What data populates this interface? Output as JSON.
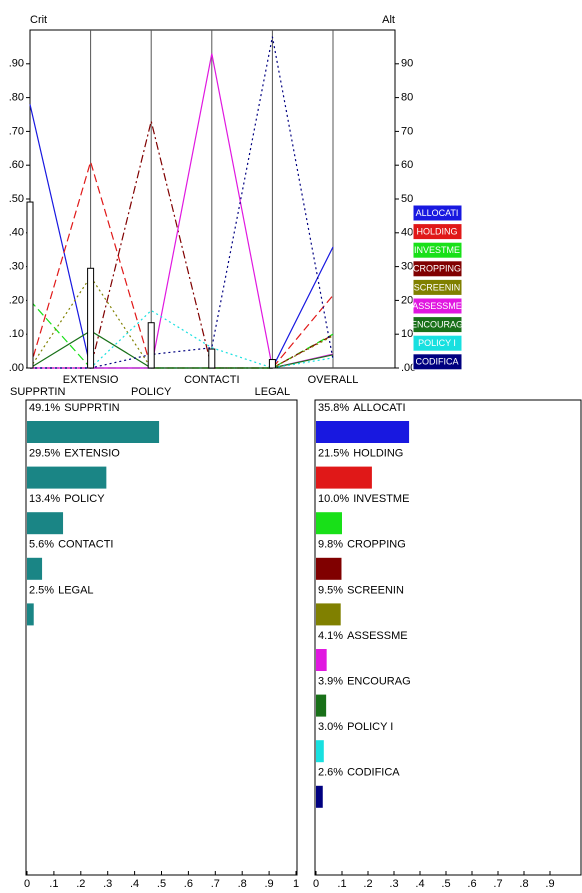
{
  "chart_data": [
    {
      "type": "line",
      "left_axis_label": "Crit",
      "right_axis_label": "Alt",
      "categories": [
        "SUPPRTIN",
        "EXTENSIO",
        "POLICY",
        "CONTACTI",
        "LEGAL",
        "OVERALL"
      ],
      "criterion_weights": [
        0.491,
        0.295,
        0.134,
        0.056,
        0.025
      ],
      "series": [
        {
          "name": "ALLOCATI",
          "color": "#1818e0",
          "style": "solid",
          "values": [
            0.78,
            0,
            0,
            0,
            0,
            0.358
          ]
        },
        {
          "name": "HOLDING",
          "color": "#e01818",
          "style": "dashed",
          "values": [
            0,
            0.61,
            0,
            0,
            0,
            0.215
          ]
        },
        {
          "name": "INVESTME",
          "color": "#18e018",
          "style": "dashed",
          "values": [
            0.2,
            0,
            0,
            0,
            0,
            0.1
          ]
        },
        {
          "name": "CROPPING",
          "color": "#800000",
          "style": "dashdot",
          "values": [
            0,
            0,
            0.73,
            0,
            0,
            0.098
          ]
        },
        {
          "name": "SCREENIN",
          "color": "#808000",
          "style": "dotted",
          "values": [
            0,
            0.27,
            0,
            0,
            0,
            0.095
          ]
        },
        {
          "name": "ASSESSME",
          "color": "#e018e0",
          "style": "solid",
          "values": [
            0,
            0,
            0,
            0.93,
            0,
            0.041
          ]
        },
        {
          "name": "ENCOURAG",
          "color": "#187018",
          "style": "solid",
          "values": [
            0,
            0.11,
            0,
            0,
            0,
            0.039
          ]
        },
        {
          "name": "POLICY I",
          "color": "#18e0e0",
          "style": "dotted",
          "values": [
            0,
            0,
            0.17,
            0.06,
            0,
            0.03
          ]
        },
        {
          "name": "CODIFICA",
          "color": "#000080",
          "style": "dotted",
          "values": [
            0,
            0,
            0.04,
            0.06,
            0.98,
            0.026
          ]
        }
      ],
      "ylim": [
        0,
        1
      ],
      "yticks": [
        {
          "value": 0,
          "label": ".00"
        },
        {
          "value": 0.1,
          "label": ".10"
        },
        {
          "value": 0.2,
          "label": ".20"
        },
        {
          "value": 0.3,
          "label": ".30"
        },
        {
          "value": 0.4,
          "label": ".40"
        },
        {
          "value": 0.5,
          "label": ".50"
        },
        {
          "value": 0.6,
          "label": ".60"
        },
        {
          "value": 0.7,
          "label": ".70"
        },
        {
          "value": 0.8,
          "label": ".80"
        },
        {
          "value": 0.9,
          "label": ".90"
        }
      ],
      "y2lim": [
        0,
        1
      ],
      "y2ticks": [
        {
          "value": 0,
          "label": ".00"
        },
        {
          "value": 0.1,
          "label": "10"
        },
        {
          "value": 0.2,
          "label": "20"
        },
        {
          "value": 0.3,
          "label": "30"
        },
        {
          "value": 0.4,
          "label": "40"
        },
        {
          "value": 0.5,
          "label": "50"
        },
        {
          "value": 0.6,
          "label": "60"
        },
        {
          "value": 0.7,
          "label": "70"
        },
        {
          "value": 0.8,
          "label": "80"
        },
        {
          "value": 0.9,
          "label": "90"
        }
      ]
    },
    {
      "type": "hbar",
      "categories": [
        "SUPPRTIN",
        "EXTENSIO",
        "POLICY",
        "CONTACTI",
        "LEGAL"
      ],
      "values": [
        0.491,
        0.295,
        0.134,
        0.056,
        0.025
      ],
      "value_labels": [
        "49.1%",
        "29.5%",
        "13.4%",
        "5.6%",
        "2.5%"
      ],
      "color": "#1a8585",
      "xlim": [
        0,
        1
      ],
      "xticks": [
        0,
        {
          "value": 0.1,
          "label": ".1"
        },
        {
          "value": 0.2,
          "label": ".2"
        },
        {
          "value": 0.3,
          "label": ".3"
        },
        {
          "value": 0.4,
          "label": ".4"
        },
        {
          "value": 0.5,
          "label": ".5"
        },
        {
          "value": 0.6,
          "label": ".6"
        },
        {
          "value": 0.7,
          "label": ".7"
        },
        {
          "value": 0.8,
          "label": ".8"
        },
        {
          "value": 0.9,
          "label": ".9"
        },
        1
      ]
    },
    {
      "type": "hbar",
      "categories": [
        "ALLOCATI",
        "HOLDING",
        "INVESTME",
        "CROPPING",
        "SCREENIN",
        "ASSESSME",
        "ENCOURAG",
        "POLICY I",
        "CODIFICA"
      ],
      "values": [
        0.358,
        0.215,
        0.1,
        0.098,
        0.095,
        0.041,
        0.039,
        0.03,
        0.026
      ],
      "value_labels": [
        "35.8%",
        "21.5%",
        "10.0%",
        "9.8%",
        "9.5%",
        "4.1%",
        "3.9%",
        "3.0%",
        "2.6%"
      ],
      "colors": [
        "#1818e0",
        "#e01818",
        "#18e018",
        "#800000",
        "#808000",
        "#e018e0",
        "#187018",
        "#18e0e0",
        "#000080"
      ],
      "xlim": [
        0,
        1
      ],
      "xticks": [
        0,
        {
          "value": 0.1,
          "label": ".1"
        },
        {
          "value": 0.2,
          "label": ".2"
        },
        {
          "value": 0.3,
          "label": ".3"
        },
        {
          "value": 0.4,
          "label": ".4"
        },
        {
          "value": 0.5,
          "label": ".5"
        },
        {
          "value": 0.6,
          "label": ".6"
        },
        {
          "value": 0.7,
          "label": ".7"
        },
        {
          "value": 0.8,
          "label": ".8"
        },
        {
          "value": 0.9,
          "label": ".9"
        }
      ]
    }
  ]
}
